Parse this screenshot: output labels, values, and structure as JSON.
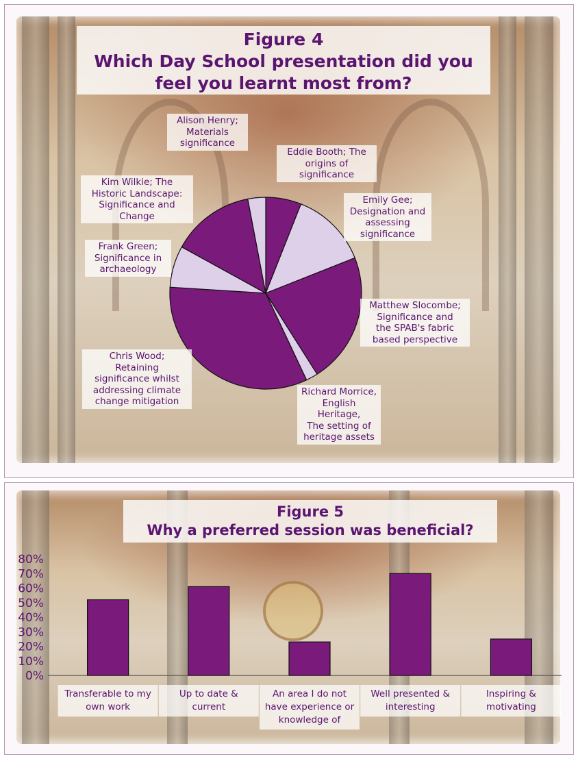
{
  "chart_data": [
    {
      "type": "pie",
      "title": "Figure 4\nWhich Day School presentation did you feel you learnt most from?",
      "categories": [
        "Eddie Booth; The origins of significance",
        "Emily Gee; Designation and assessing significance",
        "Matthew Slocombe; Significance and the SPAB's fabric based perspective",
        "Richard Morrice, English Heritage, The setting of heritage assets",
        "Chris Wood; Retaining significance whilst addressing climate change mitigation",
        "Frank Green; Significance in archaeology",
        "Kim Wilkie; The Historic Landscape: Significance and Change",
        "Alison Henry; Materials significance"
      ],
      "values": [
        6,
        13,
        22,
        2,
        33,
        7,
        14,
        3
      ],
      "colors": [
        "#7a1a7a",
        "#ddd0e8",
        "#7a1a7a",
        "#ddd0e8",
        "#7a1a7a",
        "#ddd0e8",
        "#7a1a7a",
        "#ddd0e8"
      ]
    },
    {
      "type": "bar",
      "title": "Figure 5\nWhy a preferred  session was beneficial?",
      "categories": [
        "Transferable to my own work",
        "Up to date & current",
        "An area I do not have experience or knowledge of",
        "Well presented & interesting",
        "Inspiring & motivating"
      ],
      "values": [
        52,
        61,
        23,
        70,
        25
      ],
      "ylim": [
        0,
        80
      ],
      "yticks": [
        "0%",
        "10%",
        "20%",
        "30%",
        "40%",
        "50%",
        "60%",
        "70%",
        "80%"
      ],
      "bar_color": "#7a1a7a"
    }
  ],
  "fig4": {
    "title_line1": "Figure 4",
    "title_line2": "Which Day School presentation did you",
    "title_line3": "feel you learnt most from?",
    "labels": {
      "alison_l1": "Alison Henry;",
      "alison_l2": "Materials",
      "alison_l3": "significance",
      "eddie_l1": "Eddie Booth; The",
      "eddie_l2": "origins of",
      "eddie_l3": "significance",
      "kim_l1": "Kim Wilkie; The",
      "kim_l2": "Historic Landscape:",
      "kim_l3": "Significance and",
      "kim_l4": "Change",
      "emily_l1": "Emily Gee;",
      "emily_l2": "Designation and",
      "emily_l3": "assessing",
      "emily_l4": "significance",
      "frank_l1": "Frank Green;",
      "frank_l2": "Significance in",
      "frank_l3": "archaeology",
      "matthew_l1": "Matthew Slocombe;",
      "matthew_l2": "Significance and",
      "matthew_l3": "the SPAB's fabric",
      "matthew_l4": "based perspective",
      "chris_l1": "Chris Wood;",
      "chris_l2": "Retaining",
      "chris_l3": "significance whilst",
      "chris_l4": "addressing climate",
      "chris_l5": "change mitigation",
      "richard_l1": "Richard Morrice,",
      "richard_l2": "English Heritage,",
      "richard_l3": "The setting of",
      "richard_l4": "heritage assets"
    }
  },
  "fig5": {
    "title_line1": "Figure 5",
    "title_line2": "Why a preferred  session was beneficial?",
    "xlabels": [
      [
        "Transferable to my",
        "own work"
      ],
      [
        "Up to date &",
        "current"
      ],
      [
        "An area I do not",
        "have experience or",
        "knowledge of"
      ],
      [
        "Well presented &",
        "interesting"
      ],
      [
        "Inspiring &",
        "motivating"
      ]
    ]
  }
}
